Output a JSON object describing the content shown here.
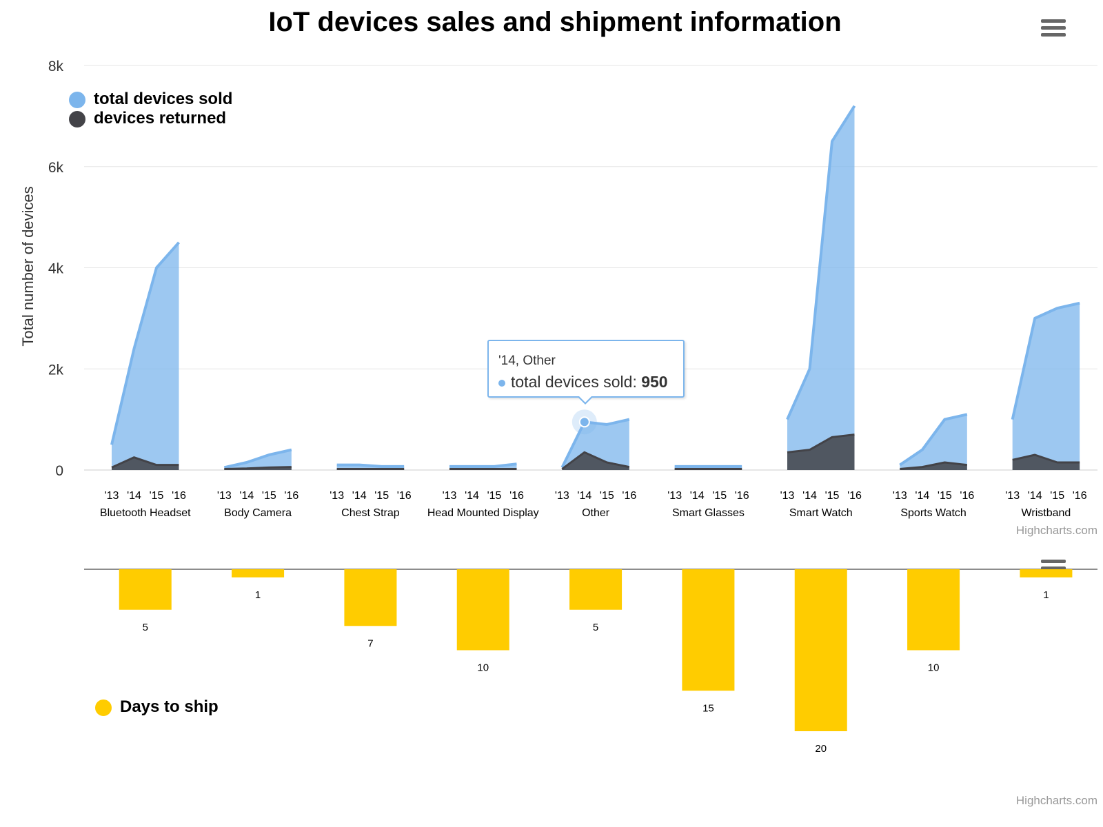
{
  "title": "IoT devices sales and shipment information",
  "menu": {
    "icon": "hamburger-menu-icon"
  },
  "credits": "Highcharts.com",
  "chart_data": [
    {
      "type": "area",
      "title": "IoT devices sales and shipment information",
      "ylabel": "Total number of devices",
      "ylim": [
        0,
        8000
      ],
      "yticks": [
        0,
        2000,
        4000,
        6000,
        8000
      ],
      "ytick_labels": [
        "0",
        "2k",
        "4k",
        "6k",
        "8k"
      ],
      "year_labels": [
        "'13",
        "'14",
        "'15",
        "'16"
      ],
      "categories": [
        "Bluetooth Headset",
        "Body Camera",
        "Chest Strap",
        "Head Mounted Display",
        "Other",
        "Smart Glasses",
        "Smart Watch",
        "Sports Watch",
        "Wristband"
      ],
      "legend_position": "top-left",
      "grid": true,
      "series": [
        {
          "name": "total devices sold",
          "color": "#7cb5ec",
          "values": [
            [
              500,
              2400,
              4000,
              4500
            ],
            [
              50,
              150,
              300,
              400
            ],
            [
              100,
              100,
              70,
              70
            ],
            [
              70,
              70,
              70,
              120
            ],
            [
              50,
              950,
              900,
              1000
            ],
            [
              70,
              70,
              70,
              70
            ],
            [
              1000,
              2000,
              6500,
              7200
            ],
            [
              100,
              400,
              1000,
              1100
            ],
            [
              1000,
              3000,
              3200,
              3300
            ]
          ]
        },
        {
          "name": "devices returned",
          "color": "#434348",
          "values": [
            [
              50,
              250,
              100,
              100
            ],
            [
              20,
              30,
              50,
              60
            ],
            [
              20,
              20,
              20,
              20
            ],
            [
              20,
              20,
              20,
              20
            ],
            [
              20,
              350,
              150,
              60
            ],
            [
              20,
              20,
              20,
              20
            ],
            [
              350,
              400,
              650,
              700
            ],
            [
              20,
              60,
              150,
              100
            ],
            [
              200,
              300,
              150,
              150
            ]
          ]
        }
      ],
      "tooltip": {
        "header": "'14, Other",
        "series_name": "total devices sold",
        "value": "950"
      }
    },
    {
      "type": "bar",
      "categories": [
        "Bluetooth Headset",
        "Body Camera",
        "Chest Strap",
        "Head Mounted Display",
        "Other",
        "Smart Glasses",
        "Smart Watch",
        "Sports Watch",
        "Wristband"
      ],
      "series": [
        {
          "name": "Days to ship",
          "color": "#ffcc00",
          "values": [
            5,
            1,
            7,
            10,
            5,
            15,
            20,
            10,
            1
          ]
        }
      ],
      "reversed": true,
      "legend_position": "bottom-left"
    }
  ]
}
